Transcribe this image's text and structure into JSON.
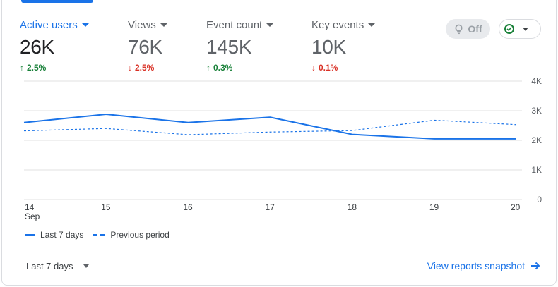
{
  "metrics": [
    {
      "label": "Active users",
      "value": "26K",
      "change": "2.5%",
      "direction": "up",
      "active": true
    },
    {
      "label": "Views",
      "value": "76K",
      "change": "2.5%",
      "direction": "down",
      "active": false
    },
    {
      "label": "Event count",
      "value": "145K",
      "change": "0.3%",
      "direction": "up",
      "active": false
    },
    {
      "label": "Key events",
      "value": "10K",
      "change": "0.1%",
      "direction": "down",
      "active": false
    }
  ],
  "controls": {
    "insights_toggle_label": "Off",
    "insights_icon": "bulb-icon",
    "status_icon": "check-circle-icon"
  },
  "chart_data": {
    "type": "line",
    "x": [
      "14",
      "15",
      "16",
      "17",
      "18",
      "19",
      "20"
    ],
    "x_sublabel": "Sep",
    "yticks": [
      "0",
      "1K",
      "2K",
      "3K",
      "4K"
    ],
    "ylim": [
      0,
      4000
    ],
    "series": [
      {
        "name": "Last 7 days",
        "style": "solid",
        "values": [
          2600,
          2880,
          2600,
          2780,
          2200,
          2050,
          2050
        ]
      },
      {
        "name": "Previous period",
        "style": "dashed",
        "values": [
          2320,
          2400,
          2190,
          2280,
          2330,
          2680,
          2530
        ]
      }
    ],
    "colors": {
      "series": "#1a73e8",
      "grid": "#e0e0e0",
      "axis_text": "#5f6368"
    }
  },
  "legend": {
    "current": "Last 7 days",
    "previous": "Previous period"
  },
  "footer": {
    "date_range": "Last 7 days",
    "snapshot_link": "View reports snapshot"
  }
}
